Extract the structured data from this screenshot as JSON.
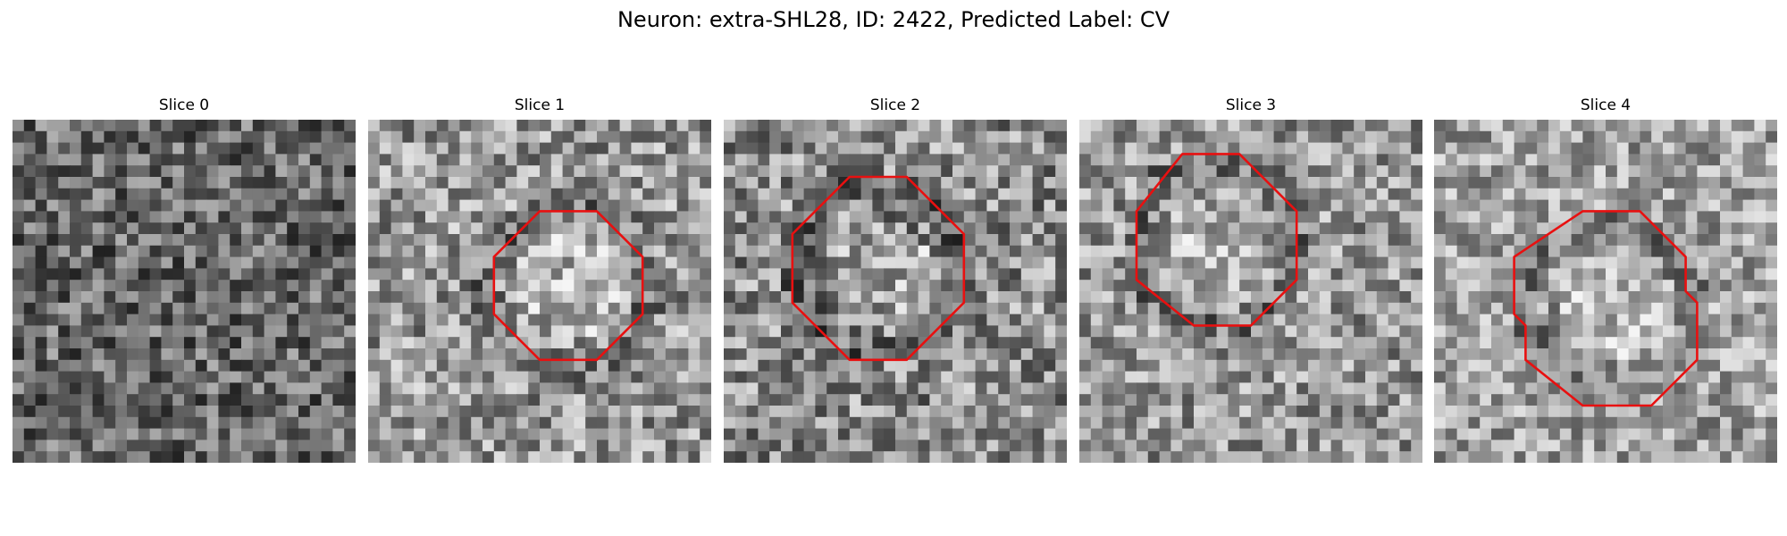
{
  "figure": {
    "title": "Neuron: extra-SHL28, ID: 2422, Predicted Label: CV"
  },
  "panels": [
    {
      "title": "Slice 0",
      "base": 105,
      "spread": 90,
      "blob": 0,
      "has_contour": false,
      "contour": []
    },
    {
      "title": "Slice 1",
      "base": 150,
      "spread": 95,
      "blob": 1,
      "has_contour": true,
      "contour": [
        [
          15,
          8
        ],
        [
          20,
          8
        ],
        [
          24,
          12
        ],
        [
          24,
          17
        ],
        [
          20,
          21
        ],
        [
          15,
          21
        ],
        [
          11,
          17
        ],
        [
          11,
          12
        ]
      ]
    },
    {
      "title": "Slice 2",
      "base": 140,
      "spread": 100,
      "blob": 1,
      "has_contour": true,
      "contour": [
        [
          11,
          5
        ],
        [
          16,
          5
        ],
        [
          21,
          10
        ],
        [
          21,
          16
        ],
        [
          16,
          21
        ],
        [
          11,
          21
        ],
        [
          6,
          16
        ],
        [
          6,
          10
        ]
      ]
    },
    {
      "title": "Slice 3",
      "base": 150,
      "spread": 90,
      "blob": 1,
      "has_contour": true,
      "contour": [
        [
          9,
          3
        ],
        [
          14,
          3
        ],
        [
          19,
          8
        ],
        [
          19,
          14
        ],
        [
          15,
          18
        ],
        [
          10,
          18
        ],
        [
          5,
          14
        ],
        [
          5,
          8
        ]
      ]
    },
    {
      "title": "Slice 4",
      "base": 160,
      "spread": 85,
      "blob": 1,
      "has_contour": true,
      "contour": [
        [
          13,
          8
        ],
        [
          18,
          8
        ],
        [
          22,
          12
        ],
        [
          22,
          15
        ],
        [
          23,
          16
        ],
        [
          23,
          21
        ],
        [
          19,
          25
        ],
        [
          13,
          25
        ],
        [
          8,
          21
        ],
        [
          8,
          18
        ],
        [
          7,
          17
        ],
        [
          7,
          12
        ]
      ]
    }
  ]
}
